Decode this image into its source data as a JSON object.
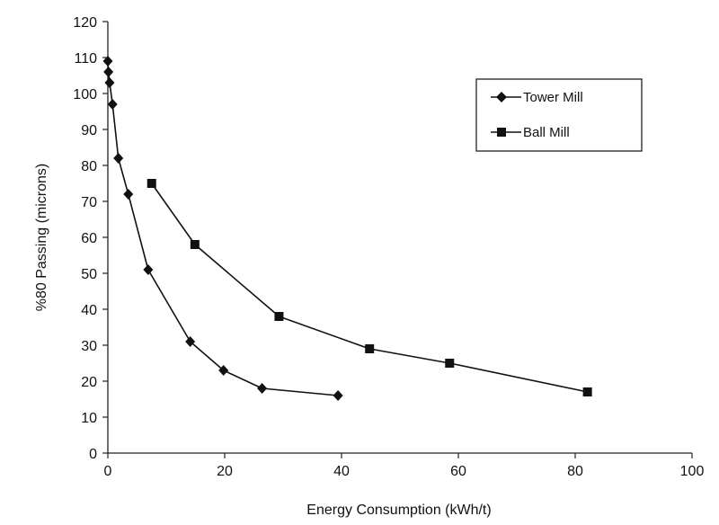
{
  "chart_data": {
    "type": "line",
    "title": "",
    "xlabel": "Energy Consumption (kWh/t)",
    "ylabel": "%80 Passing (microns)",
    "xlim": [
      0,
      100
    ],
    "ylim": [
      0,
      120
    ],
    "xticks": [
      "0",
      "20",
      "40",
      "60",
      "80",
      "100"
    ],
    "yticks": [
      "0",
      "10",
      "20",
      "30",
      "40",
      "50",
      "60",
      "70",
      "80",
      "90",
      "100",
      "110",
      "120"
    ],
    "grid": false,
    "legend_position": "top-right",
    "series": [
      {
        "name": "Tower Mill",
        "marker": "diamond",
        "color": "#111111",
        "points": [
          {
            "x": 0.0,
            "y": 109
          },
          {
            "x": 0.1,
            "y": 106
          },
          {
            "x": 0.3,
            "y": 103
          },
          {
            "x": 0.8,
            "y": 97
          },
          {
            "x": 1.8,
            "y": 82
          },
          {
            "x": 3.5,
            "y": 72
          },
          {
            "x": 6.9,
            "y": 51
          },
          {
            "x": 14.1,
            "y": 31
          },
          {
            "x": 19.8,
            "y": 23
          },
          {
            "x": 26.4,
            "y": 18
          },
          {
            "x": 39.4,
            "y": 16
          }
        ]
      },
      {
        "name": "Ball Mill",
        "marker": "square",
        "color": "#111111",
        "points": [
          {
            "x": 7.5,
            "y": 75
          },
          {
            "x": 14.9,
            "y": 58
          },
          {
            "x": 29.3,
            "y": 38
          },
          {
            "x": 44.8,
            "y": 29
          },
          {
            "x": 58.5,
            "y": 25
          },
          {
            "x": 82.1,
            "y": 17
          }
        ]
      }
    ]
  }
}
